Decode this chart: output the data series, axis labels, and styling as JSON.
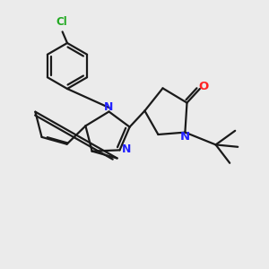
{
  "bg_color": "#ebebeb",
  "bond_color": "#1a1a1a",
  "N_color": "#2222ff",
  "O_color": "#ff2222",
  "Cl_color": "#22aa22",
  "line_width": 1.6,
  "fig_size": [
    3.0,
    3.0
  ],
  "dpi": 100,
  "xlim": [
    0,
    10
  ],
  "ylim": [
    0,
    10
  ]
}
